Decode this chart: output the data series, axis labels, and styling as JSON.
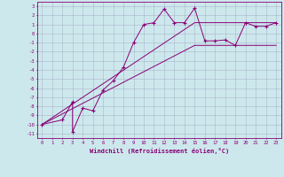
{
  "xlabel": "Windchill (Refroidissement éolien,°C)",
  "xlim": [
    -0.5,
    23.5
  ],
  "ylim": [
    -11.5,
    3.5
  ],
  "xticks": [
    0,
    1,
    2,
    3,
    4,
    5,
    6,
    7,
    8,
    9,
    10,
    11,
    12,
    13,
    14,
    15,
    16,
    17,
    18,
    19,
    20,
    21,
    22,
    23
  ],
  "yticks": [
    3,
    2,
    1,
    0,
    -1,
    -2,
    -3,
    -4,
    -5,
    -6,
    -7,
    -8,
    -9,
    -10,
    -11
  ],
  "bg_color": "#cde8ec",
  "grid_color": "#aab4cc",
  "line_color": "#880077",
  "line1_x": [
    0,
    2,
    3,
    3,
    4,
    5,
    6,
    7,
    8,
    9,
    10,
    11,
    12,
    13,
    14,
    15,
    16,
    17,
    18,
    19,
    20,
    21,
    22,
    23
  ],
  "line1_y": [
    -10,
    -9.5,
    -7.5,
    -10.8,
    -8.2,
    -8.5,
    -6.2,
    -5.2,
    -3.7,
    -1.0,
    1.0,
    1.2,
    2.7,
    1.2,
    1.2,
    2.8,
    -0.8,
    -0.8,
    -0.7,
    -1.3,
    1.2,
    0.8,
    0.8,
    1.2
  ],
  "line2_x": [
    0,
    15,
    23
  ],
  "line2_y": [
    -10,
    -1.3,
    -1.3
  ],
  "line3_x": [
    0,
    15,
    23
  ],
  "line3_y": [
    -10,
    1.2,
    1.2
  ],
  "fig_width": 3.2,
  "fig_height": 2.0,
  "dpi": 100
}
